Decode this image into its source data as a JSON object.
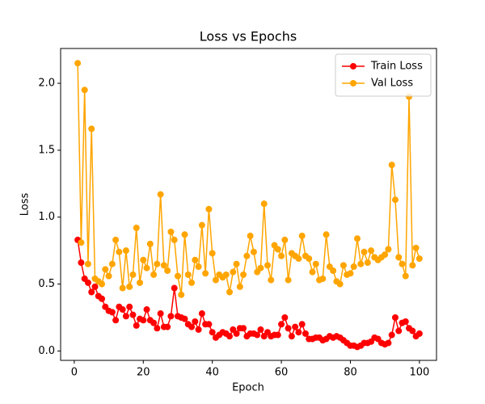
{
  "chart_data": {
    "type": "line",
    "title": "Loss vs Epochs",
    "x_label": "Epoch",
    "y_label": "Loss",
    "x": [
      1,
      2,
      3,
      4,
      5,
      6,
      7,
      8,
      9,
      10,
      11,
      12,
      13,
      14,
      15,
      16,
      17,
      18,
      19,
      20,
      21,
      22,
      23,
      24,
      25,
      26,
      27,
      28,
      29,
      30,
      31,
      32,
      33,
      34,
      35,
      36,
      37,
      38,
      39,
      40,
      41,
      42,
      43,
      44,
      45,
      46,
      47,
      48,
      49,
      50,
      51,
      52,
      53,
      54,
      55,
      56,
      57,
      58,
      59,
      60,
      61,
      62,
      63,
      64,
      65,
      66,
      67,
      68,
      69,
      70,
      71,
      72,
      73,
      74,
      75,
      76,
      77,
      78,
      79,
      80,
      81,
      82,
      83,
      84,
      85,
      86,
      87,
      88,
      89,
      90,
      91,
      92,
      93,
      94,
      95,
      96,
      97,
      98,
      99,
      100
    ],
    "series": [
      {
        "name": "Train Loss",
        "color": "#ff0000",
        "values": [
          0.83,
          0.66,
          0.54,
          0.51,
          0.44,
          0.48,
          0.41,
          0.39,
          0.33,
          0.3,
          0.29,
          0.23,
          0.33,
          0.31,
          0.26,
          0.33,
          0.27,
          0.19,
          0.24,
          0.23,
          0.31,
          0.23,
          0.21,
          0.17,
          0.28,
          0.18,
          0.18,
          0.26,
          0.47,
          0.26,
          0.25,
          0.24,
          0.2,
          0.18,
          0.22,
          0.16,
          0.28,
          0.2,
          0.2,
          0.14,
          0.1,
          0.12,
          0.14,
          0.13,
          0.11,
          0.16,
          0.13,
          0.17,
          0.17,
          0.11,
          0.13,
          0.13,
          0.12,
          0.16,
          0.11,
          0.14,
          0.11,
          0.12,
          0.12,
          0.2,
          0.25,
          0.17,
          0.11,
          0.18,
          0.14,
          0.2,
          0.13,
          0.09,
          0.09,
          0.1,
          0.1,
          0.08,
          0.09,
          0.11,
          0.1,
          0.11,
          0.1,
          0.08,
          0.06,
          0.04,
          0.04,
          0.03,
          0.04,
          0.06,
          0.06,
          0.07,
          0.1,
          0.09,
          0.06,
          0.05,
          0.06,
          0.12,
          0.25,
          0.15,
          0.21,
          0.22,
          0.17,
          0.15,
          0.11,
          0.13
        ]
      },
      {
        "name": "Val Loss",
        "color": "#ffa500",
        "values": [
          2.15,
          0.81,
          1.95,
          0.65,
          1.66,
          0.54,
          0.52,
          0.5,
          0.61,
          0.56,
          0.65,
          0.83,
          0.74,
          0.47,
          0.75,
          0.48,
          0.57,
          0.92,
          0.51,
          0.68,
          0.62,
          0.8,
          0.57,
          0.65,
          1.17,
          0.64,
          0.6,
          0.89,
          0.83,
          0.56,
          0.42,
          0.87,
          0.57,
          0.51,
          0.68,
          0.63,
          0.94,
          0.58,
          1.06,
          0.73,
          0.53,
          0.57,
          0.55,
          0.57,
          0.44,
          0.59,
          0.65,
          0.48,
          0.57,
          0.71,
          0.86,
          0.74,
          0.59,
          0.62,
          1.1,
          0.64,
          0.53,
          0.79,
          0.76,
          0.71,
          0.83,
          0.53,
          0.73,
          0.71,
          0.69,
          0.86,
          0.71,
          0.69,
          0.59,
          0.65,
          0.53,
          0.54,
          0.87,
          0.63,
          0.6,
          0.52,
          0.5,
          0.64,
          0.57,
          0.58,
          0.63,
          0.84,
          0.65,
          0.74,
          0.66,
          0.75,
          0.7,
          0.68,
          0.7,
          0.72,
          0.76,
          1.39,
          1.13,
          0.7,
          0.65,
          0.56,
          1.9,
          0.64,
          0.77,
          0.69
        ]
      }
    ],
    "xlim": [
      -3.95,
      104.95
    ],
    "ylim": [
      -0.07,
      2.26
    ],
    "xticks": [
      0,
      20,
      40,
      60,
      80,
      100
    ],
    "yticks": [
      {
        "value": 0,
        "label": "0.0"
      },
      0.5,
      {
        "value": 1,
        "label": "1.0"
      },
      1.5,
      {
        "value": 2,
        "label": "2.0"
      }
    ],
    "legend": "upper right",
    "grid": false
  }
}
